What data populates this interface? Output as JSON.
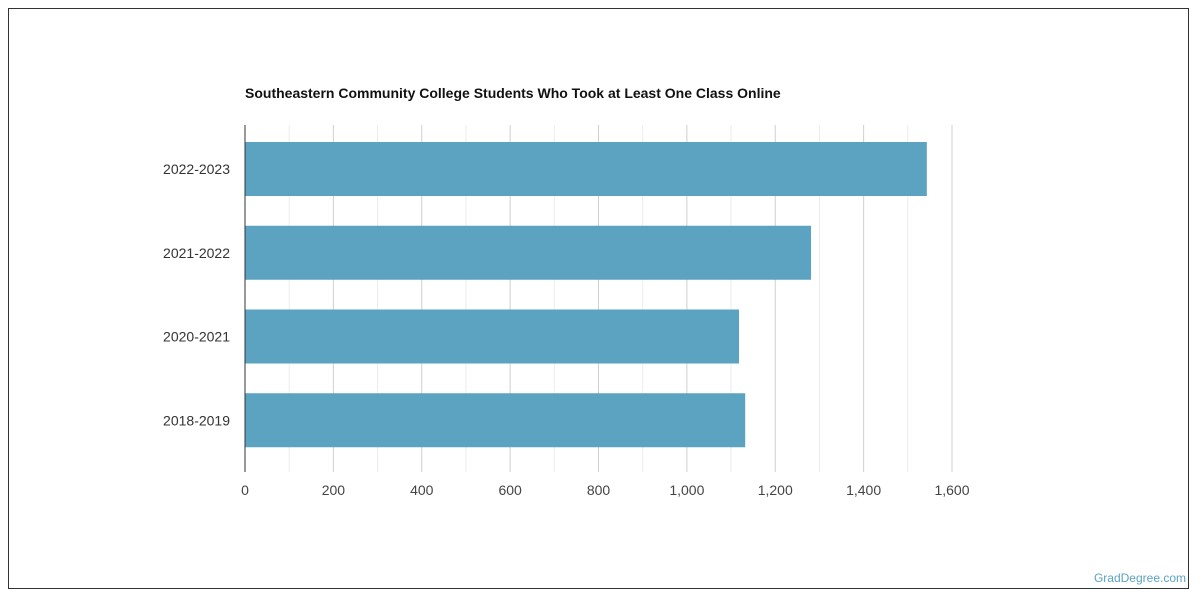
{
  "chart_data": {
    "type": "bar",
    "orientation": "horizontal",
    "title": "Southeastern Community College Students Who Took at Least One Class Online",
    "categories": [
      "2022-2023",
      "2021-2022",
      "2020-2021",
      "2018-2019"
    ],
    "values": [
      1543,
      1281,
      1118,
      1132
    ],
    "xlim": [
      0,
      1600
    ],
    "xticks": [
      0,
      200,
      400,
      600,
      800,
      1000,
      1200,
      1400,
      1600
    ],
    "xtick_labels": [
      "0",
      "200",
      "400",
      "600",
      "800",
      "1,000",
      "1,200",
      "1,400",
      "1,600"
    ],
    "xlabel": "",
    "ylabel": "",
    "grid": true,
    "bar_color": "#5ba3c1"
  },
  "credit": "GradDegree.com"
}
